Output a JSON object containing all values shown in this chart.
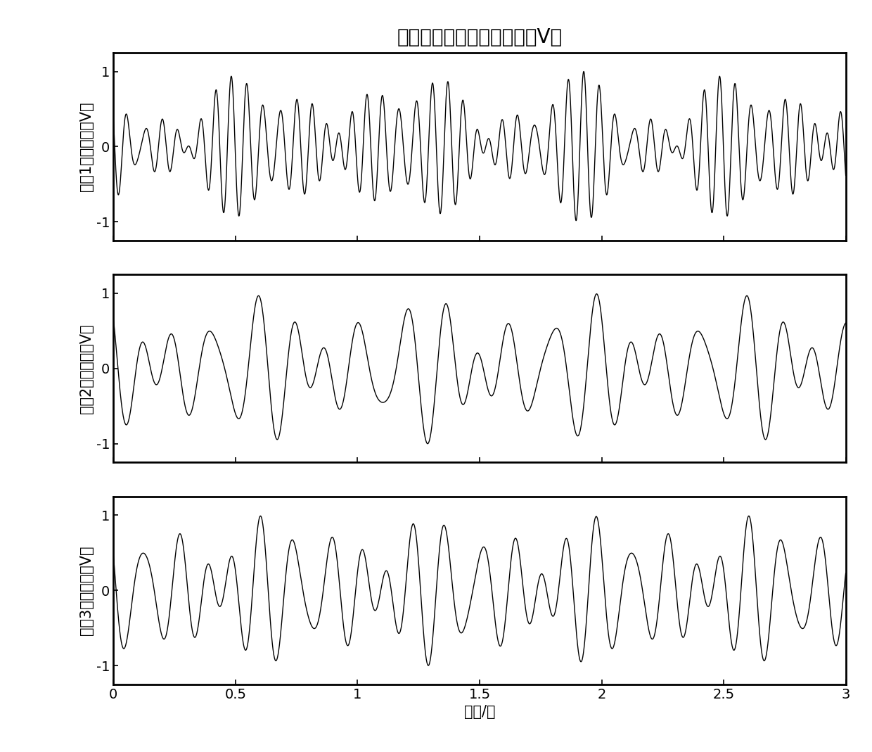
{
  "title": "真实目标归一化回波实部（V）",
  "xlabel": "时间/秒",
  "ylabels": [
    "目标1电场实部（V）",
    "目标2电场实部（V）",
    "目标3电场实部（V）"
  ],
  "xlim": [
    0,
    3
  ],
  "ylim": [
    -1.25,
    1.25
  ],
  "yticks": [
    -1,
    0,
    1
  ],
  "xticks": [
    0,
    0.5,
    1,
    1.5,
    2,
    2.5,
    3
  ],
  "xtick_labels": [
    "0",
    "0.5",
    "1",
    "1.5",
    "2",
    "2.5",
    "3"
  ],
  "line_color": "#000000",
  "line_width": 1.0,
  "bg_color": "#ffffff",
  "title_fontsize": 20,
  "label_fontsize": 15,
  "tick_fontsize": 14,
  "fs": 2000,
  "duration": 3.0
}
